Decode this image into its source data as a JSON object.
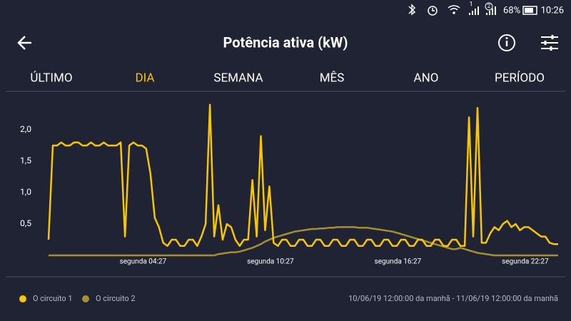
{
  "status": {
    "sim1": "1",
    "sim2": "2",
    "battery": "68%",
    "time": "10:26"
  },
  "header": {
    "title": "Potência ativa (kW)"
  },
  "tabs": {
    "items": [
      "ÚLTIMO",
      "DIA",
      "SEMANA",
      "MÊS",
      "ANO",
      "PERÍODO"
    ],
    "active": 1
  },
  "chart_data": {
    "type": "line",
    "x": [
      0,
      0.2,
      0.4,
      0.6,
      0.8,
      1,
      1.2,
      1.4,
      1.6,
      1.8,
      2,
      2.2,
      2.4,
      2.6,
      2.8,
      3,
      3.2,
      3.4,
      3.6,
      3.8,
      4,
      4.2,
      4.4,
      4.6,
      4.8,
      5,
      5.2,
      5.4,
      5.6,
      5.8,
      6,
      6.2,
      6.4,
      6.6,
      6.8,
      7,
      7.2,
      7.4,
      7.6,
      7.8,
      8,
      8.2,
      8.4,
      8.6,
      8.8,
      9,
      9.2,
      9.4,
      9.6,
      9.8,
      10,
      10.2,
      10.4,
      10.6,
      10.8,
      11,
      11.2,
      11.4,
      11.6,
      11.8,
      12,
      12.2,
      12.4,
      12.6,
      12.8,
      13,
      13.2,
      13.4,
      13.6,
      13.8,
      14,
      14.2,
      14.4,
      14.6,
      14.8,
      15,
      15.2,
      15.4,
      15.6,
      15.8,
      16,
      16.2,
      16.4,
      16.6,
      16.8,
      17,
      17.2,
      17.4,
      17.6,
      17.8,
      18,
      18.2,
      18.4,
      18.6,
      18.8,
      19,
      19.2,
      19.4,
      19.6,
      19.8,
      20,
      20.2,
      20.4,
      20.6,
      20.8,
      21,
      21.2,
      21.4,
      21.6,
      21.8,
      22,
      22.2,
      22.4,
      22.6,
      22.8,
      23,
      23.2,
      23.4,
      23.6,
      23.8,
      24
    ],
    "series": [
      {
        "name": "O circuito 1",
        "color": "#f7c600",
        "values": [
          0.25,
          1.75,
          1.75,
          1.8,
          1.75,
          1.75,
          1.8,
          1.8,
          1.75,
          1.75,
          1.8,
          1.75,
          1.75,
          1.8,
          1.75,
          1.75,
          1.75,
          1.8,
          0.3,
          1.75,
          1.8,
          1.75,
          1.75,
          1.7,
          1.3,
          0.6,
          0.45,
          0.2,
          0.15,
          0.25,
          0.25,
          0.15,
          0.15,
          0.25,
          0.25,
          0.15,
          0.3,
          0.5,
          2.4,
          0.3,
          0.8,
          0.25,
          0.5,
          0.45,
          0.25,
          0.15,
          0.25,
          0.25,
          1.2,
          0.3,
          1.9,
          0.4,
          1.1,
          0.2,
          0.15,
          0.25,
          0.25,
          0.15,
          0.15,
          0.25,
          0.25,
          0.15,
          0.15,
          0.25,
          0.25,
          0.15,
          0.15,
          0.25,
          0.25,
          0.15,
          0.15,
          0.25,
          0.25,
          0.15,
          0.15,
          0.25,
          0.25,
          0.15,
          0.15,
          0.25,
          0.25,
          0.15,
          0.15,
          0.25,
          0.25,
          0.15,
          0.15,
          0.25,
          0.25,
          0.15,
          0.15,
          0.25,
          0.25,
          0.15,
          0.15,
          0.25,
          0.25,
          0.15,
          0.15,
          2.2,
          0.3,
          2.35,
          0.2,
          0.2,
          0.35,
          0.45,
          0.4,
          0.5,
          0.55,
          0.45,
          0.5,
          0.4,
          0.45,
          0.45,
          0.4,
          0.35,
          0.3,
          0.3,
          0.2,
          0.18,
          0.18
        ]
      },
      {
        "name": "O circuito 2",
        "color": "#a68f2e",
        "values": [
          0,
          0,
          0,
          0,
          0,
          0,
          0,
          0,
          0,
          0,
          0,
          0,
          0,
          0,
          0,
          0,
          0,
          0,
          0,
          0,
          0,
          0,
          0,
          0,
          0,
          0,
          0,
          0,
          0,
          0,
          0,
          0,
          0,
          0,
          0,
          0,
          0,
          0,
          0,
          0,
          0.02,
          0.03,
          0.04,
          0.05,
          0.05,
          0.06,
          0.08,
          0.1,
          0.12,
          0.15,
          0.18,
          0.22,
          0.25,
          0.28,
          0.3,
          0.32,
          0.34,
          0.36,
          0.38,
          0.39,
          0.4,
          0.41,
          0.42,
          0.42,
          0.43,
          0.43,
          0.44,
          0.44,
          0.45,
          0.45,
          0.45,
          0.45,
          0.45,
          0.44,
          0.44,
          0.44,
          0.43,
          0.42,
          0.41,
          0.4,
          0.39,
          0.38,
          0.36,
          0.34,
          0.32,
          0.3,
          0.28,
          0.26,
          0.24,
          0.22,
          0.2,
          0.18,
          0.16,
          0.14,
          0.12,
          0.1,
          0.1,
          0.12,
          0.1,
          0.08,
          0.06,
          0.04,
          0.03,
          0.02,
          0.01,
          0,
          0,
          0,
          0,
          0,
          0,
          0,
          0,
          0,
          0,
          0,
          0,
          0,
          0,
          0,
          0
        ]
      }
    ],
    "xlim": [
      0,
      24
    ],
    "xticks": [
      {
        "value": 4.45,
        "label": "segunda 04:27"
      },
      {
        "value": 10.45,
        "label": "segunda 10:27"
      },
      {
        "value": 16.45,
        "label": "segunda 16:27"
      },
      {
        "value": 22.45,
        "label": "segunda 22:27"
      }
    ],
    "ylim": [
      0,
      2.5
    ],
    "yticks": [
      {
        "value": 0.5,
        "label": "0,5"
      },
      {
        "value": 1,
        "label": "1,0"
      },
      {
        "value": 1.5,
        "label": "1,5"
      },
      {
        "value": 2,
        "label": "2,0"
      }
    ],
    "grid": false
  },
  "footer": {
    "range": "10/06/19 12:00:00 da manhã - 11/06/19 12:00:00 da manhã"
  }
}
